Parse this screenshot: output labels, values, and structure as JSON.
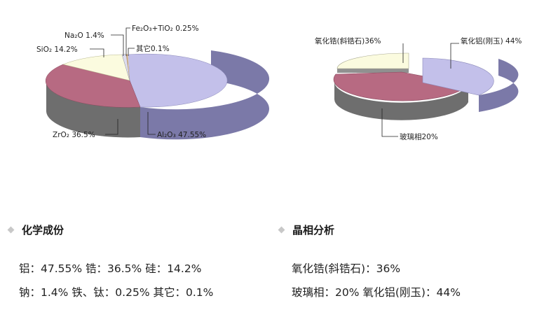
{
  "chart_data": [
    {
      "type": "pie",
      "title": "",
      "slices": [
        {
          "label": "Al₂O₃ 47.55%",
          "value": 47.55,
          "color": "#c3c0ea",
          "side": "#7b79a8"
        },
        {
          "label": "ZrO₂ 36.5%",
          "value": 36.5,
          "color": "#b76a82",
          "side": "#6e6e6e"
        },
        {
          "label": "SiO₂ 14.2%",
          "value": 14.2,
          "color": "#fbfbdf",
          "side": "#909090"
        },
        {
          "label": "Na₂O 1.4%",
          "value": 1.4,
          "color": "#dcdcf0",
          "side": "#808080"
        },
        {
          "label": "Fe₂O₃+TiO₂ 0.25%",
          "value": 0.25,
          "color": "#c8a070",
          "side": "#808080"
        },
        {
          "label": "其它0.1%",
          "value": 0.1,
          "color": "#e8e8e8",
          "side": "#808080"
        }
      ]
    },
    {
      "type": "pie",
      "title": "",
      "exploded": true,
      "slices": [
        {
          "label": "氧化铝(刚玉) 44%",
          "value": 44,
          "color": "#c3c0ea",
          "side": "#7b79a8"
        },
        {
          "label": "玻璃相20%",
          "value": 20,
          "color": "#b76a82",
          "side": "#6e6e6e"
        },
        {
          "label": "氧化锆(斜锆石)36%",
          "value": 36,
          "color": "#fbfbdf",
          "side": "#909090"
        }
      ]
    }
  ],
  "sections": {
    "chem_title": "化学成份",
    "chem_line1": "铝：47.55% 锆：36.5% 硅：14.2%",
    "chem_line2": "钠：1.4% 铁、钛：0.25% 其它：0.1%",
    "phase_title": "晶相分析",
    "phase_line1": "氧化锆(斜锆石)：36%",
    "phase_line2": "玻璃相：20% 氧化铝(刚玉)：44%"
  }
}
